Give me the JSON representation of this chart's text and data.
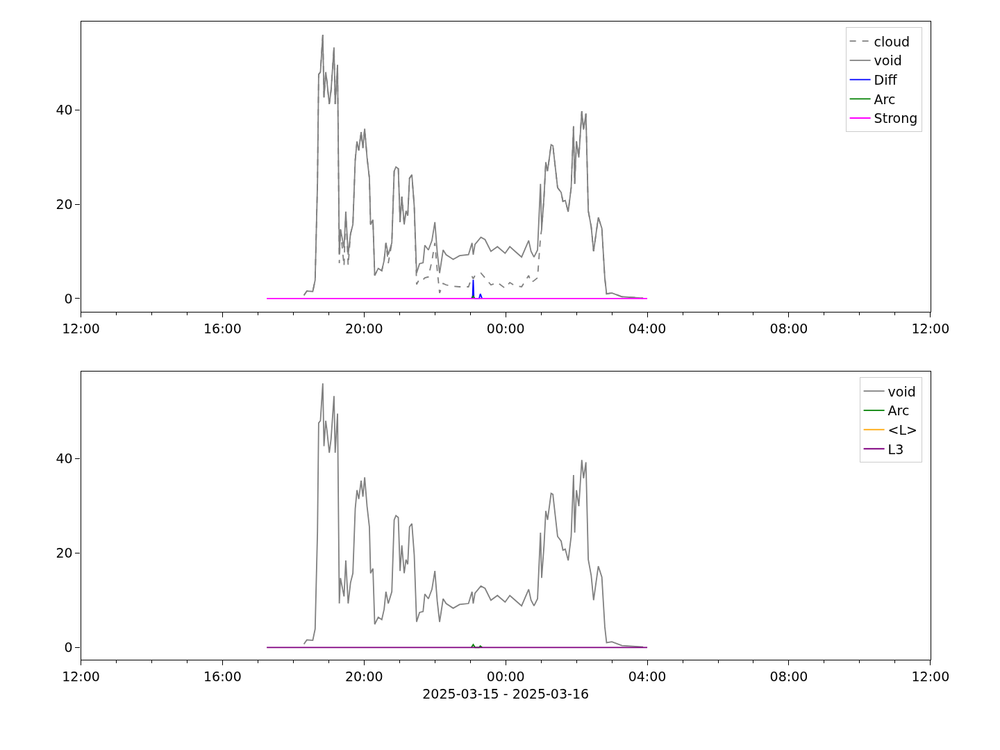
{
  "chart_data": [
    {
      "type": "line",
      "legend": "top right",
      "xlim": [
        "2025-03-15T12:00",
        "2025-03-16T12:00"
      ],
      "xticks": [
        {
          "value": "2025-03-15T12:00",
          "label": "12:00"
        },
        {
          "value": "2025-03-15T16:00",
          "label": "16:00"
        },
        {
          "value": "2025-03-15T20:00",
          "label": "20:00"
        },
        {
          "value": "2025-03-16T00:00",
          "label": "00:00"
        },
        {
          "value": "2025-03-16T04:00",
          "label": "04:00"
        },
        {
          "value": "2025-03-16T08:00",
          "label": "08:00"
        },
        {
          "value": "2025-03-16T12:00",
          "label": "12:00"
        }
      ],
      "ylim": [
        -2.8,
        58.7
      ],
      "yticks": [
        0,
        20,
        40
      ],
      "series": [
        {
          "name": "cloud",
          "color": "#808080",
          "line_style": "dashed",
          "x": [
            "2025-03-15T18:18",
            "2025-03-15T18:23",
            "2025-03-15T18:33",
            "2025-03-15T18:37",
            "2025-03-15T18:41",
            "2025-03-15T18:43",
            "2025-03-15T18:46",
            "2025-03-15T18:50",
            "2025-03-15T18:52",
            "2025-03-15T18:55",
            "2025-03-15T18:57",
            "2025-03-15T19:01",
            "2025-03-15T19:04",
            "2025-03-15T19:09",
            "2025-03-15T19:11",
            "2025-03-15T19:15",
            "2025-03-15T19:18",
            "2025-03-15T19:20",
            "2025-03-15T19:26",
            "2025-03-15T19:29",
            "2025-03-15T19:33",
            "2025-03-15T19:37",
            "2025-03-15T19:41",
            "2025-03-15T19:45",
            "2025-03-15T19:48",
            "2025-03-15T19:51",
            "2025-03-15T19:55",
            "2025-03-15T19:58",
            "2025-03-15T20:01",
            "2025-03-15T20:05",
            "2025-03-15T20:09",
            "2025-03-15T20:11",
            "2025-03-15T20:15",
            "2025-03-15T20:18",
            "2025-03-15T20:24",
            "2025-03-15T20:30",
            "2025-03-15T20:34",
            "2025-03-15T20:37",
            "2025-03-15T20:41",
            "2025-03-15T20:47",
            "2025-03-15T20:51",
            "2025-03-15T20:54",
            "2025-03-15T20:58",
            "2025-03-15T21:01",
            "2025-03-15T21:04",
            "2025-03-15T21:08",
            "2025-03-15T21:11",
            "2025-03-15T21:14",
            "2025-03-15T21:17",
            "2025-03-15T21:21",
            "2025-03-15T21:25",
            "2025-03-15T21:29",
            "2025-03-15T21:34",
            "2025-03-15T21:40",
            "2025-03-15T21:43",
            "2025-03-15T21:49",
            "2025-03-15T21:55",
            "2025-03-15T22:00",
            "2025-03-15T22:04",
            "2025-03-15T22:08",
            "2025-03-15T22:14",
            "2025-03-15T22:19",
            "2025-03-15T22:31",
            "2025-03-15T22:42",
            "2025-03-15T22:57",
            "2025-03-15T23:03",
            "2025-03-15T23:05",
            "2025-03-15T23:08",
            "2025-03-15T23:18",
            "2025-03-15T23:25",
            "2025-03-15T23:35",
            "2025-03-15T23:46",
            "2025-03-15T23:59",
            "2025-03-16T00:07",
            "2025-03-16T00:16",
            "2025-03-16T00:27",
            "2025-03-16T00:39",
            "2025-03-16T00:43",
            "2025-03-16T00:48",
            "2025-03-16T00:54",
            "2025-03-16T00:59",
            "2025-03-16T01:01",
            "2025-03-16T01:05",
            "2025-03-16T01:08",
            "2025-03-16T01:11",
            "2025-03-16T01:17",
            "2025-03-16T01:20",
            "2025-03-16T01:28",
            "2025-03-16T01:34",
            "2025-03-16T01:37",
            "2025-03-16T01:41",
            "2025-03-16T01:46",
            "2025-03-16T01:51",
            "2025-03-16T01:55",
            "2025-03-16T01:57",
            "2025-03-16T02:00",
            "2025-03-16T02:04",
            "2025-03-16T02:09",
            "2025-03-16T02:12",
            "2025-03-16T02:16",
            "2025-03-16T02:20",
            "2025-03-16T02:25",
            "2025-03-16T02:29",
            "2025-03-16T02:37",
            "2025-03-16T02:43",
            "2025-03-16T02:48",
            "2025-03-16T02:51",
            "2025-03-16T03:00",
            "2025-03-16T03:17",
            "2025-03-16T03:53"
          ],
          "values": [
            0.7,
            1.6,
            1.5,
            3.9,
            24.5,
            47.5,
            48,
            55.9,
            42.6,
            48,
            46,
            41.2,
            44.1,
            53.2,
            41.2,
            49.5,
            7.5,
            14.7,
            6.9,
            18.4,
            7.0,
            13.7,
            15.7,
            29.4,
            33.3,
            31.4,
            35.3,
            31.9,
            36,
            29.9,
            25.5,
            15.7,
            16.7,
            4.9,
            6.4,
            5.9,
            8.1,
            11.8,
            7.5,
            11.8,
            27,
            27.9,
            27.5,
            16.2,
            21.6,
            15.7,
            18.6,
            17.6,
            25.5,
            26.2,
            19.6,
            3.0,
            4.2,
            4.0,
            4.4,
            4.6,
            8.0,
            11.8,
            6.0,
            1.2,
            3.2,
            2.9,
            2.6,
            2.5,
            2.5,
            4.7,
            4.2,
            4.9,
            5.4,
            4.4,
            2.9,
            3.4,
            2.2,
            3.4,
            2.7,
            2.5,
            4.9,
            3.4,
            3.8,
            4.4,
            13,
            14.7,
            21.6,
            28.9,
            27,
            32.6,
            32.4,
            23.5,
            22.5,
            20.6,
            20.8,
            18.4,
            23.5,
            36.5,
            24.3,
            33.3,
            29.9,
            39.7,
            35.8,
            39.2,
            18.6,
            15.2,
            10,
            17.2,
            14.9,
            4.4,
            1,
            1.2,
            0.4,
            0.1
          ]
        },
        {
          "name": "void",
          "color": "#808080",
          "line_style": "solid",
          "x": [
            "2025-03-15T18:18",
            "2025-03-15T18:23",
            "2025-03-15T18:33",
            "2025-03-15T18:37",
            "2025-03-15T18:41",
            "2025-03-15T18:43",
            "2025-03-15T18:46",
            "2025-03-15T18:50",
            "2025-03-15T18:52",
            "2025-03-15T18:55",
            "2025-03-15T18:57",
            "2025-03-15T19:01",
            "2025-03-15T19:04",
            "2025-03-15T19:09",
            "2025-03-15T19:11",
            "2025-03-15T19:15",
            "2025-03-15T19:18",
            "2025-03-15T19:20",
            "2025-03-15T19:26",
            "2025-03-15T19:29",
            "2025-03-15T19:33",
            "2025-03-15T19:37",
            "2025-03-15T19:41",
            "2025-03-15T19:45",
            "2025-03-15T19:48",
            "2025-03-15T19:51",
            "2025-03-15T19:55",
            "2025-03-15T19:58",
            "2025-03-15T20:01",
            "2025-03-15T20:05",
            "2025-03-15T20:09",
            "2025-03-15T20:11",
            "2025-03-15T20:15",
            "2025-03-15T20:18",
            "2025-03-15T20:24",
            "2025-03-15T20:30",
            "2025-03-15T20:34",
            "2025-03-15T20:37",
            "2025-03-15T20:41",
            "2025-03-15T20:47",
            "2025-03-15T20:51",
            "2025-03-15T20:54",
            "2025-03-15T20:58",
            "2025-03-15T21:01",
            "2025-03-15T21:04",
            "2025-03-15T21:08",
            "2025-03-15T21:11",
            "2025-03-15T21:14",
            "2025-03-15T21:17",
            "2025-03-15T21:21",
            "2025-03-15T21:25",
            "2025-03-15T21:29",
            "2025-03-15T21:34",
            "2025-03-15T21:40",
            "2025-03-15T21:43",
            "2025-03-15T21:49",
            "2025-03-15T21:55",
            "2025-03-15T22:00",
            "2025-03-15T22:04",
            "2025-03-15T22:08",
            "2025-03-15T22:14",
            "2025-03-15T22:19",
            "2025-03-15T22:31",
            "2025-03-15T22:42",
            "2025-03-15T22:57",
            "2025-03-15T23:03",
            "2025-03-15T23:05",
            "2025-03-15T23:08",
            "2025-03-15T23:18",
            "2025-03-15T23:25",
            "2025-03-15T23:35",
            "2025-03-15T23:46",
            "2025-03-15T23:59",
            "2025-03-16T00:07",
            "2025-03-16T00:16",
            "2025-03-16T00:27",
            "2025-03-16T00:39",
            "2025-03-16T00:43",
            "2025-03-16T00:48",
            "2025-03-16T00:54",
            "2025-03-16T00:59",
            "2025-03-16T01:01",
            "2025-03-16T01:05",
            "2025-03-16T01:08",
            "2025-03-16T01:11",
            "2025-03-16T01:17",
            "2025-03-16T01:20",
            "2025-03-16T01:28",
            "2025-03-16T01:34",
            "2025-03-16T01:37",
            "2025-03-16T01:41",
            "2025-03-16T01:46",
            "2025-03-16T01:51",
            "2025-03-16T01:55",
            "2025-03-16T01:57",
            "2025-03-16T02:00",
            "2025-03-16T02:04",
            "2025-03-16T02:09",
            "2025-03-16T02:12",
            "2025-03-16T02:16",
            "2025-03-16T02:20",
            "2025-03-16T02:25",
            "2025-03-16T02:29",
            "2025-03-16T02:37",
            "2025-03-16T02:43",
            "2025-03-16T02:48",
            "2025-03-16T02:51",
            "2025-03-16T03:00",
            "2025-03-16T03:17",
            "2025-03-16T03:53"
          ],
          "values": [
            0.7,
            1.6,
            1.5,
            3.9,
            24.5,
            47.5,
            48,
            55.9,
            42.6,
            48,
            46,
            41.2,
            44.1,
            53.2,
            41.2,
            49.5,
            9.3,
            14.7,
            10.8,
            18.4,
            9.3,
            13.7,
            15.7,
            29.4,
            33.3,
            31.4,
            35.3,
            31.9,
            36,
            29.9,
            25.5,
            15.7,
            16.7,
            4.9,
            6.4,
            5.9,
            8.1,
            11.8,
            9.3,
            11.8,
            27,
            27.9,
            27.5,
            16.2,
            21.6,
            15.7,
            18.6,
            17.6,
            25.5,
            26.2,
            19.6,
            5.4,
            7.4,
            7.6,
            11.3,
            10.3,
            12.3,
            16.2,
            9.8,
            5.4,
            10.3,
            9.3,
            8.3,
            9.1,
            9.3,
            11.8,
            9.3,
            11.5,
            13,
            12.5,
            10,
            11,
            9.6,
            11,
            10,
            8.8,
            12.3,
            10,
            8.8,
            10.3,
            24.3,
            14.7,
            21.6,
            28.9,
            27,
            32.6,
            32.4,
            23.5,
            22.5,
            20.6,
            20.8,
            18.4,
            23.5,
            36.5,
            24.3,
            33.3,
            29.9,
            39.7,
            35.8,
            39.2,
            18.6,
            15.2,
            10,
            17.2,
            14.9,
            4.4,
            1,
            1.2,
            0.4,
            0.1
          ]
        },
        {
          "name": "Diff",
          "color": "#0000ff",
          "line_style": "solid",
          "x": [
            "2025-03-15T23:02",
            "2025-03-15T23:04",
            "2025-03-15T23:05",
            "2025-03-15T23:06",
            "2025-03-15T23:08",
            "2025-03-15T23:15",
            "2025-03-15T23:17",
            "2025-03-15T23:20"
          ],
          "values": [
            0,
            0.5,
            4.0,
            0.3,
            0,
            0,
            1.0,
            0
          ]
        },
        {
          "name": "Arc",
          "color": "#008000",
          "line_style": "solid",
          "x": [
            "2025-03-15T23:03",
            "2025-03-15T23:05",
            "2025-03-15T23:07"
          ],
          "values": [
            0,
            0.6,
            0
          ]
        },
        {
          "name": "Strong",
          "color": "#ff00ff",
          "line_style": "solid",
          "x": [
            "2025-03-15T17:15",
            "2025-03-16T04:00"
          ],
          "values": [
            0,
            0
          ]
        }
      ]
    },
    {
      "type": "line",
      "legend": "top right",
      "xlabel": "2025-03-15 - 2025-03-16",
      "xlim": [
        "2025-03-15T12:00",
        "2025-03-16T12:00"
      ],
      "xticks": [
        {
          "value": "2025-03-15T12:00",
          "label": "12:00"
        },
        {
          "value": "2025-03-15T16:00",
          "label": "16:00"
        },
        {
          "value": "2025-03-15T20:00",
          "label": "20:00"
        },
        {
          "value": "2025-03-16T00:00",
          "label": "00:00"
        },
        {
          "value": "2025-03-16T04:00",
          "label": "04:00"
        },
        {
          "value": "2025-03-16T08:00",
          "label": "08:00"
        },
        {
          "value": "2025-03-16T12:00",
          "label": "12:00"
        }
      ],
      "ylim": [
        -2.6,
        58.4
      ],
      "yticks": [
        0,
        20,
        40
      ],
      "series": [
        {
          "name": "void",
          "color": "#808080",
          "line_style": "solid",
          "x": [
            "2025-03-15T18:18",
            "2025-03-15T18:23",
            "2025-03-15T18:33",
            "2025-03-15T18:37",
            "2025-03-15T18:41",
            "2025-03-15T18:43",
            "2025-03-15T18:46",
            "2025-03-15T18:50",
            "2025-03-15T18:52",
            "2025-03-15T18:55",
            "2025-03-15T18:57",
            "2025-03-15T19:01",
            "2025-03-15T19:04",
            "2025-03-15T19:09",
            "2025-03-15T19:11",
            "2025-03-15T19:15",
            "2025-03-15T19:18",
            "2025-03-15T19:20",
            "2025-03-15T19:26",
            "2025-03-15T19:29",
            "2025-03-15T19:33",
            "2025-03-15T19:37",
            "2025-03-15T19:41",
            "2025-03-15T19:45",
            "2025-03-15T19:48",
            "2025-03-15T19:51",
            "2025-03-15T19:55",
            "2025-03-15T19:58",
            "2025-03-15T20:01",
            "2025-03-15T20:05",
            "2025-03-15T20:09",
            "2025-03-15T20:11",
            "2025-03-15T20:15",
            "2025-03-15T20:18",
            "2025-03-15T20:24",
            "2025-03-15T20:30",
            "2025-03-15T20:34",
            "2025-03-15T20:37",
            "2025-03-15T20:41",
            "2025-03-15T20:47",
            "2025-03-15T20:51",
            "2025-03-15T20:54",
            "2025-03-15T20:58",
            "2025-03-15T21:01",
            "2025-03-15T21:04",
            "2025-03-15T21:08",
            "2025-03-15T21:11",
            "2025-03-15T21:14",
            "2025-03-15T21:17",
            "2025-03-15T21:21",
            "2025-03-15T21:25",
            "2025-03-15T21:29",
            "2025-03-15T21:34",
            "2025-03-15T21:40",
            "2025-03-15T21:43",
            "2025-03-15T21:49",
            "2025-03-15T21:55",
            "2025-03-15T22:00",
            "2025-03-15T22:04",
            "2025-03-15T22:08",
            "2025-03-15T22:14",
            "2025-03-15T22:19",
            "2025-03-15T22:31",
            "2025-03-15T22:42",
            "2025-03-15T22:57",
            "2025-03-15T23:03",
            "2025-03-15T23:05",
            "2025-03-15T23:08",
            "2025-03-15T23:18",
            "2025-03-15T23:25",
            "2025-03-15T23:35",
            "2025-03-15T23:46",
            "2025-03-15T23:59",
            "2025-03-16T00:07",
            "2025-03-16T00:16",
            "2025-03-16T00:27",
            "2025-03-16T00:39",
            "2025-03-16T00:43",
            "2025-03-16T00:48",
            "2025-03-16T00:54",
            "2025-03-16T00:59",
            "2025-03-16T01:01",
            "2025-03-16T01:05",
            "2025-03-16T01:08",
            "2025-03-16T01:11",
            "2025-03-16T01:17",
            "2025-03-16T01:20",
            "2025-03-16T01:28",
            "2025-03-16T01:34",
            "2025-03-16T01:37",
            "2025-03-16T01:41",
            "2025-03-16T01:46",
            "2025-03-16T01:51",
            "2025-03-16T01:55",
            "2025-03-16T01:57",
            "2025-03-16T02:00",
            "2025-03-16T02:04",
            "2025-03-16T02:09",
            "2025-03-16T02:12",
            "2025-03-16T02:16",
            "2025-03-16T02:20",
            "2025-03-16T02:25",
            "2025-03-16T02:29",
            "2025-03-16T02:37",
            "2025-03-16T02:43",
            "2025-03-16T02:48",
            "2025-03-16T02:51",
            "2025-03-16T03:00",
            "2025-03-16T03:17",
            "2025-03-16T03:53"
          ],
          "values": [
            0.7,
            1.6,
            1.5,
            3.9,
            24.5,
            47.5,
            48,
            55.9,
            42.6,
            48,
            46,
            41.2,
            44.1,
            53.2,
            41.2,
            49.5,
            9.3,
            14.7,
            10.8,
            18.4,
            9.3,
            13.7,
            15.7,
            29.4,
            33.3,
            31.4,
            35.3,
            31.9,
            36,
            29.9,
            25.5,
            15.7,
            16.7,
            4.9,
            6.4,
            5.9,
            8.1,
            11.8,
            9.3,
            11.8,
            27,
            27.9,
            27.5,
            16.2,
            21.6,
            15.7,
            18.6,
            17.6,
            25.5,
            26.2,
            19.6,
            5.4,
            7.4,
            7.6,
            11.3,
            10.3,
            12.3,
            16.2,
            9.8,
            5.4,
            10.3,
            9.3,
            8.3,
            9.1,
            9.3,
            11.8,
            9.3,
            11.5,
            13,
            12.5,
            10,
            11,
            9.6,
            11,
            10,
            8.8,
            12.3,
            10,
            8.8,
            10.3,
            24.3,
            14.7,
            21.6,
            28.9,
            27,
            32.6,
            32.4,
            23.5,
            22.5,
            20.6,
            20.8,
            18.4,
            23.5,
            36.5,
            24.3,
            33.3,
            29.9,
            39.7,
            35.8,
            39.2,
            18.6,
            15.2,
            10,
            17.2,
            14.9,
            4.4,
            1,
            1.2,
            0.4,
            0.1
          ]
        },
        {
          "name": "Arc",
          "color": "#008000",
          "line_style": "solid",
          "x": [
            "2025-03-15T23:02",
            "2025-03-15T23:05",
            "2025-03-15T23:08",
            "2025-03-15T23:15",
            "2025-03-15T23:17",
            "2025-03-15T23:20"
          ],
          "values": [
            0,
            0.6,
            0,
            0,
            0.3,
            0
          ]
        },
        {
          "name": "<L>",
          "color": "#ffa500",
          "line_style": "solid"
        },
        {
          "name": "L3",
          "color": "#800080",
          "line_style": "solid",
          "x": [
            "2025-03-15T17:15",
            "2025-03-16T04:00"
          ],
          "values": [
            0,
            0
          ]
        }
      ]
    }
  ]
}
